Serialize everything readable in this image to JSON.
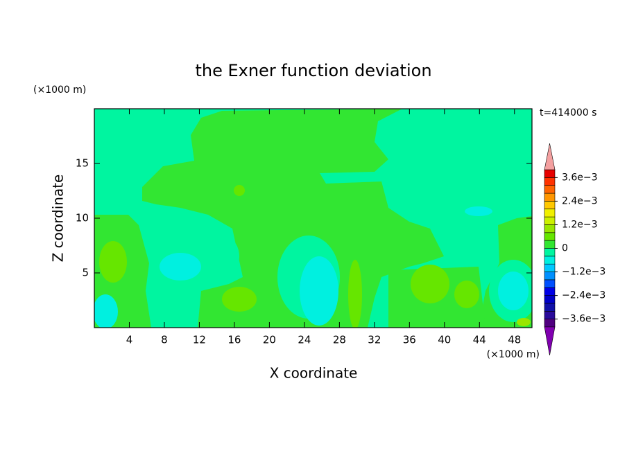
{
  "chart_data": {
    "type": "contour",
    "title": "the Exner function deviation",
    "xlabel": "X coordinate",
    "ylabel": "Z coordinate",
    "x_unit": "(×1000 m)",
    "y_unit": "(×1000 m)",
    "time_label": "t=414000 s",
    "xlim": [
      0,
      50
    ],
    "ylim": [
      0,
      20
    ],
    "xticks": [
      4,
      8,
      12,
      16,
      20,
      24,
      28,
      32,
      36,
      40,
      44,
      48
    ],
    "yticks": [
      5,
      10,
      15
    ],
    "colorbar": {
      "clim": [
        -0.004,
        0.004
      ],
      "colors": [
        "#50007f",
        "#2a0a9a",
        "#1010a8",
        "#0000c8",
        "#0000e6",
        "#0050ff",
        "#0090ff",
        "#00c8ff",
        "#00f0e0",
        "#00f5a0",
        "#32e632",
        "#66e600",
        "#99e600",
        "#ccf000",
        "#f0f000",
        "#ffc800",
        "#ff9600",
        "#ff6400",
        "#ff3200",
        "#e60000"
      ],
      "under_color": "#8000b0",
      "over_color": "#f4a0a0",
      "ticks": [
        {
          "value": 0.0036,
          "label": "3.6e−3"
        },
        {
          "value": 0.0024,
          "label": "2.4e−3"
        },
        {
          "value": 0.0012,
          "label": "1.2e−3"
        },
        0,
        {
          "value": -0.0012,
          "label": "−1.2e−3"
        },
        {
          "value": -0.0024,
          "label": "−2.4e−3"
        },
        {
          "value": -0.0036,
          "label": "−3.6e−3"
        }
      ]
    }
  }
}
